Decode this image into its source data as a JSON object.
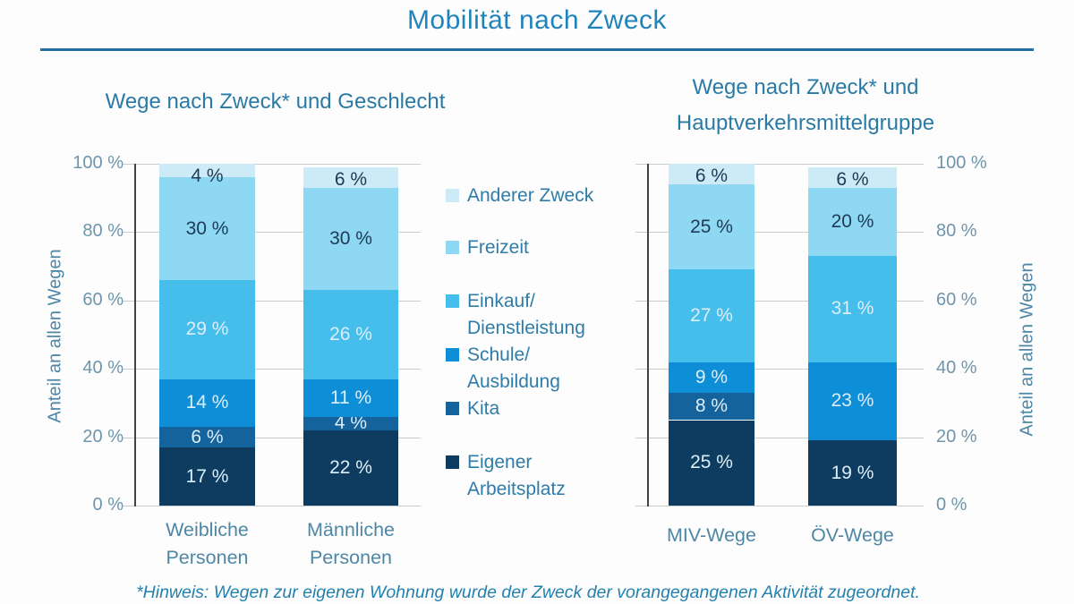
{
  "page": {
    "title": "Mobilität nach Zweck",
    "footnote": "*Hinweis: Wegen zur eigenen Wohnung wurde der Zweck der vorangegangenen Aktivität zugeordnet."
  },
  "colors": {
    "title_blue": "#2183bb",
    "rule_blue": "#1c6fa0",
    "subtitle_blue": "#2a7aa6",
    "axis_text": "#6e95ab",
    "gridline": "#c9cccd",
    "axis_line": "#3e4448",
    "label_pale": "#ddeef8",
    "label_dark": "#1e3a54"
  },
  "legend": {
    "position": "center-between-charts",
    "items": [
      {
        "lines": [
          "Anderer Zweck"
        ],
        "color": "#cdeaf7"
      },
      {
        "lines": [
          "Freizeit"
        ],
        "color": "#8ed8f4"
      },
      {
        "lines": [
          "Einkauf/",
          "Dienstleistung"
        ],
        "color": "#45beec"
      },
      {
        "lines": [
          "Schule/",
          "Ausbildung"
        ],
        "color": "#0e8ed6"
      },
      {
        "lines": [
          "Kita"
        ],
        "color": "#14639c"
      },
      {
        "lines": [
          "Eigener",
          "Arbeitsplatz"
        ],
        "color": "#0d3c60"
      }
    ]
  },
  "chart_data": [
    {
      "type": "bar",
      "stacked": true,
      "title": "Wege nach Zweck* und Geschlecht",
      "ylabel": "Anteil an allen Wegen",
      "ylim": [
        0,
        100
      ],
      "yticks": [
        0,
        20,
        40,
        60,
        80,
        100
      ],
      "ytick_suffix": " %",
      "grid": true,
      "axis_side": "left",
      "categories": [
        [
          "Weibliche",
          "Personen"
        ],
        [
          "Männliche",
          "Personen"
        ]
      ],
      "series": [
        {
          "name": "Eigener Arbeitsplatz",
          "color": "#0d3c60",
          "label_dark": false,
          "values": [
            17,
            22
          ]
        },
        {
          "name": "Kita",
          "color": "#14639c",
          "label_dark": false,
          "values": [
            6,
            4
          ]
        },
        {
          "name": "Schule/Ausbildung",
          "color": "#0e8ed6",
          "label_dark": false,
          "values": [
            14,
            11
          ]
        },
        {
          "name": "Einkauf/Dienstleistung",
          "color": "#45beec",
          "label_dark": false,
          "values": [
            29,
            26
          ]
        },
        {
          "name": "Freizeit",
          "color": "#8ed8f4",
          "label_dark": true,
          "values": [
            30,
            30
          ]
        },
        {
          "name": "Anderer Zweck",
          "color": "#cdeaf7",
          "label_dark": true,
          "values": [
            4,
            6
          ]
        }
      ]
    },
    {
      "type": "bar",
      "stacked": true,
      "title": "Wege nach Zweck* und Hauptverkehrsmittelgruppe",
      "title_lines": [
        "Wege nach Zweck* und",
        "Hauptverkehrsmittelgruppe"
      ],
      "ylabel": "Anteil an allen Wegen",
      "ylim": [
        0,
        100
      ],
      "yticks": [
        0,
        20,
        40,
        60,
        80,
        100
      ],
      "ytick_suffix": " %",
      "grid": true,
      "axis_side": "right",
      "categories": [
        [
          "MIV-Wege"
        ],
        [
          "ÖV-Wege"
        ]
      ],
      "series": [
        {
          "name": "Eigener Arbeitsplatz",
          "color": "#0d3c60",
          "label_dark": false,
          "values": [
            25,
            19
          ]
        },
        {
          "name": "Kita",
          "color": "#14639c",
          "label_dark": false,
          "values": [
            8,
            0
          ]
        },
        {
          "name": "Schule/Ausbildung",
          "color": "#0e8ed6",
          "label_dark": false,
          "values": [
            9,
            23
          ]
        },
        {
          "name": "Einkauf/Dienstleistung",
          "color": "#45beec",
          "label_dark": false,
          "values": [
            27,
            31
          ]
        },
        {
          "name": "Freizeit",
          "color": "#8ed8f4",
          "label_dark": true,
          "values": [
            25,
            20
          ]
        },
        {
          "name": "Anderer Zweck",
          "color": "#cdeaf7",
          "label_dark": true,
          "values": [
            6,
            6
          ]
        }
      ]
    }
  ]
}
